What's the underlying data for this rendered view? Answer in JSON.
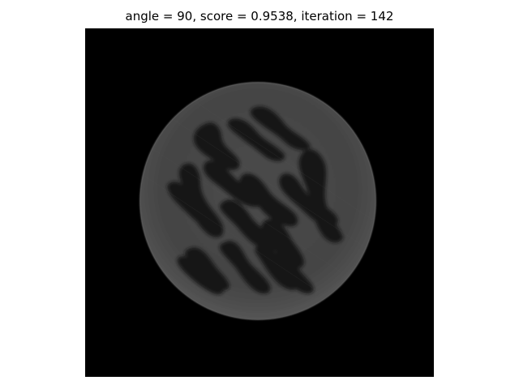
{
  "figure": {
    "title": "angle = 90, score = 0.9538, iteration = 142"
  },
  "colors": {
    "background": "#ffffff",
    "image_background": "#000000",
    "disc_gray": "#454545",
    "hole_dark": "#121212"
  },
  "image": {
    "description_colormap": "gray"
  }
}
